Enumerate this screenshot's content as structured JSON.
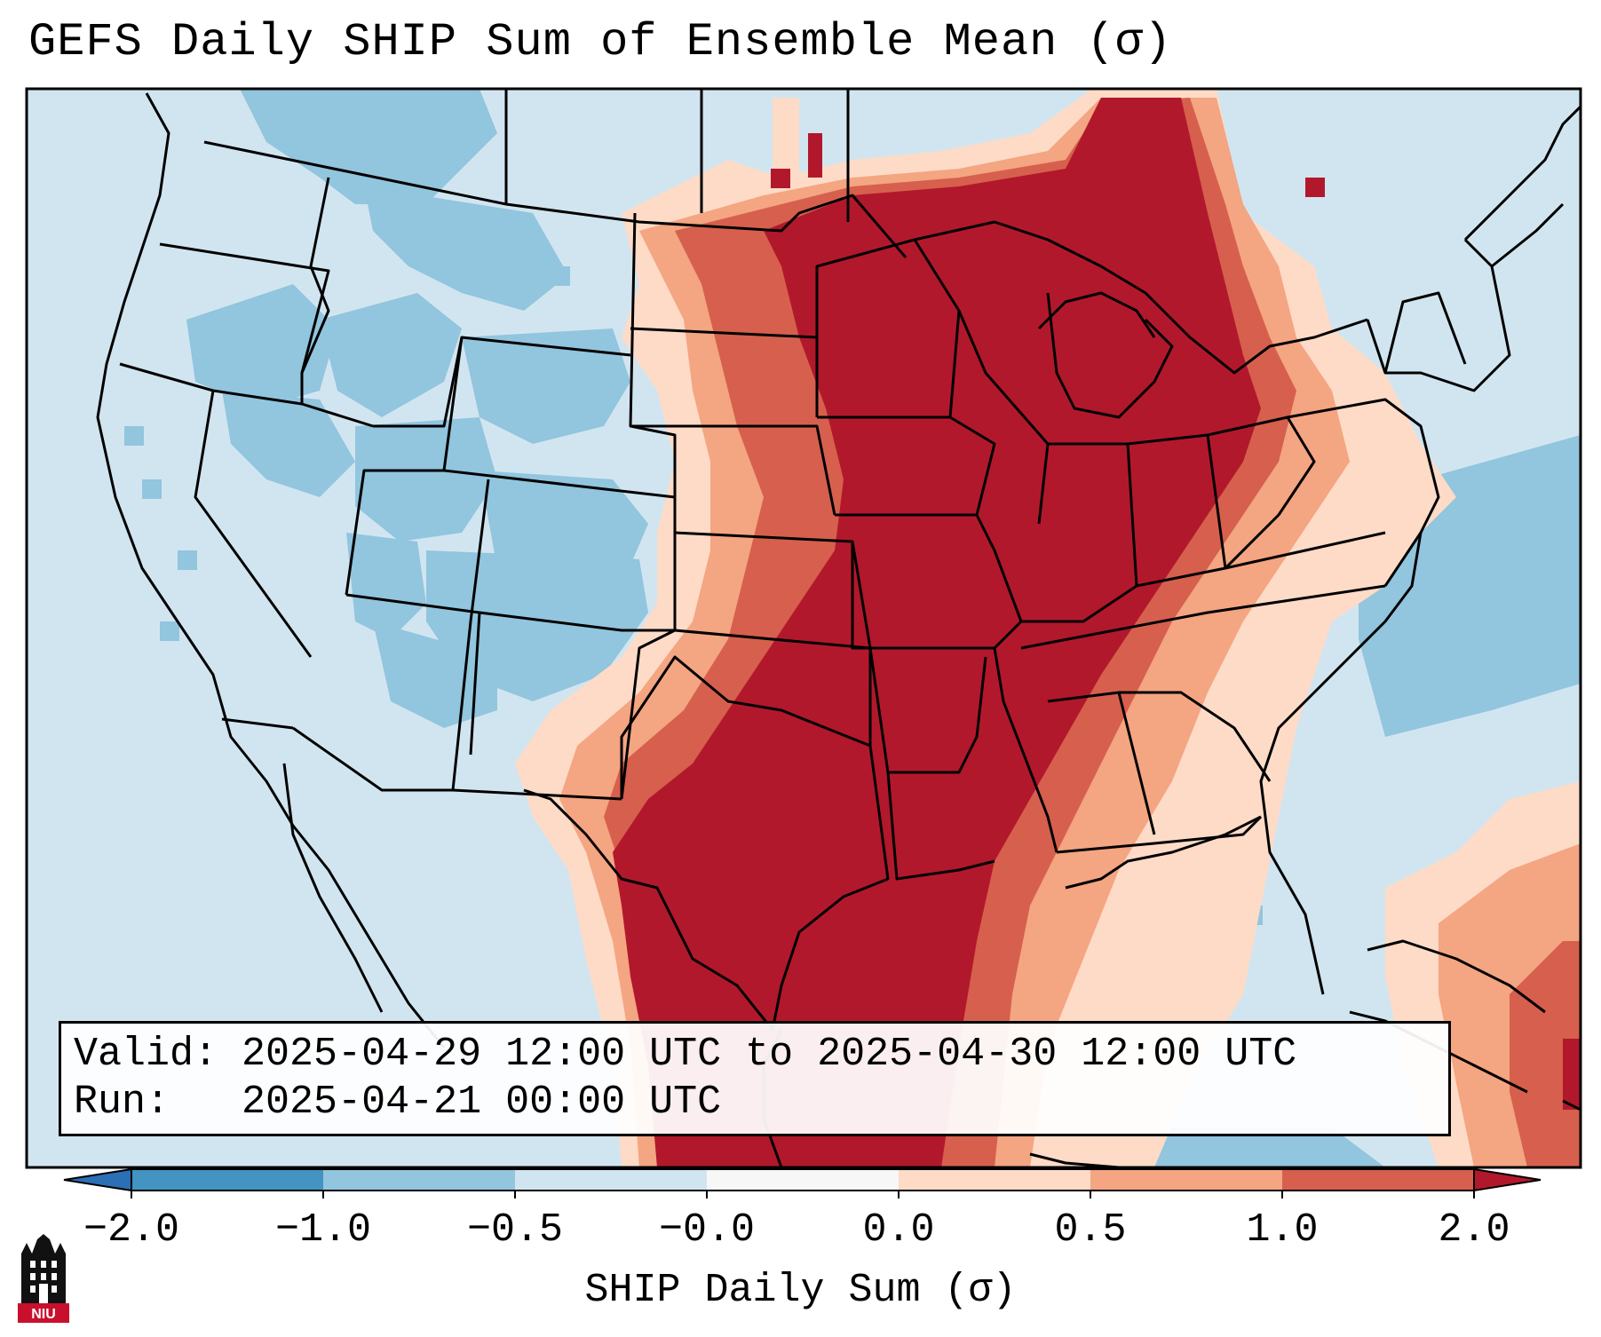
{
  "title": "GEFS Daily SHIP Sum of Ensemble Mean (σ)",
  "info": {
    "valid_label": "Valid:",
    "valid_value": "2025-04-29 12:00 UTC to 2025-04-30 12:00 UTC",
    "run_label": "Run:",
    "run_value": "2025-04-21 00:00 UTC"
  },
  "colorbar": {
    "title": "SHIP Daily Sum (σ)",
    "ticks": [
      "−2.0",
      "−1.0",
      "−0.5",
      "−0.0",
      "0.0",
      "0.5",
      "1.0",
      "2.0"
    ],
    "colors": {
      "lt_m2": "#2b6fb5",
      "m2_m1": "#4393c3",
      "m1_m05": "#92c5de",
      "m05_0": "#d1e5f0",
      "zero": "#f7f7f7",
      "p0_05": "#fddbc7",
      "p05_1": "#f4a582",
      "p1_2": "#d6604d",
      "gt_2": "#b2182b"
    }
  },
  "logo_text": "NIU",
  "map": {
    "region": "Continental United States",
    "overlays": [
      "state boundaries",
      "coastlines",
      "country borders"
    ]
  }
}
